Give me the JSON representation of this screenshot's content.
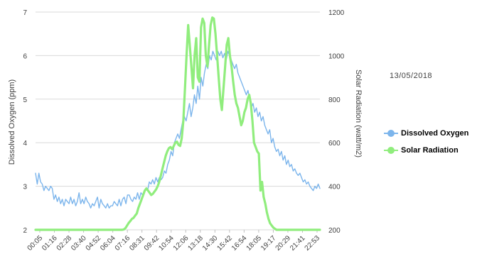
{
  "date_label": "13/05/2018",
  "legend": [
    {
      "name": "Dissolved Oxygen",
      "color": "#7cb5ec"
    },
    {
      "name": "Solar Radiation",
      "color": "#90ed7d"
    }
  ],
  "chart_data": {
    "type": "line",
    "xlabel": "",
    "x_tick_labels": [
      "00:05",
      "01:16",
      "02:28",
      "03:40",
      "04:52",
      "06:04",
      "07:16",
      "08:31",
      "09:42",
      "10:54",
      "12:06",
      "13:18",
      "14:30",
      "15:42",
      "16:54",
      "18:05",
      "19:17",
      "20:29",
      "21:41",
      "22:53"
    ],
    "y_left": {
      "label": "Dissolved Oxygen (ppm)",
      "min": 2,
      "max": 7,
      "ticks": [
        2,
        3,
        4,
        5,
        6,
        7
      ]
    },
    "y_right": {
      "label": "Solar Radiation (watt/m2)",
      "min": 200,
      "max": 1200,
      "ticks": [
        200,
        400,
        600,
        800,
        1000,
        1200
      ]
    },
    "grid": true,
    "series": [
      {
        "name": "Dissolved Oxygen",
        "axis": "left",
        "color": "#7cb5ec",
        "values": [
          3.3,
          3.05,
          3.3,
          3.1,
          3.05,
          2.9,
          3.0,
          2.95,
          2.9,
          3.0,
          2.95,
          2.7,
          2.8,
          2.65,
          2.75,
          2.6,
          2.7,
          2.55,
          2.7,
          2.65,
          2.6,
          2.75,
          2.6,
          2.7,
          2.55,
          2.65,
          2.85,
          2.6,
          2.7,
          2.6,
          2.75,
          2.65,
          2.6,
          2.5,
          2.6,
          2.55,
          2.65,
          2.75,
          2.5,
          2.7,
          2.6,
          2.55,
          2.5,
          2.6,
          2.5,
          2.55,
          2.55,
          2.65,
          2.6,
          2.55,
          2.7,
          2.55,
          2.7,
          2.75,
          2.6,
          2.8,
          2.8,
          2.7,
          2.65,
          2.75,
          2.7,
          2.85,
          2.7,
          2.85,
          2.8,
          2.9,
          2.95,
          2.9,
          3.1,
          3.05,
          3.15,
          3.05,
          3.2,
          3.1,
          3.2,
          3.15,
          3.2,
          3.35,
          3.3,
          3.5,
          3.6,
          3.8,
          3.7,
          4.0,
          4.1,
          4.2,
          4.1,
          4.3,
          4.5,
          4.6,
          4.5,
          4.7,
          4.9,
          4.6,
          4.8,
          5.1,
          4.9,
          5.3,
          5.0,
          5.5,
          5.3,
          5.6,
          5.8,
          5.7,
          6.0,
          5.9,
          6.1,
          6.0,
          5.9,
          6.1,
          6.0,
          6.1,
          5.95,
          6.05,
          5.9,
          6.1,
          6.0,
          5.9,
          5.8,
          5.7,
          5.8,
          5.6,
          5.5,
          5.4,
          5.3,
          5.2,
          5.1,
          5.2,
          5.0,
          4.8,
          4.9,
          4.7,
          4.8,
          4.6,
          4.7,
          4.5,
          4.6,
          4.4,
          4.3,
          4.2,
          4.3,
          4.0,
          4.1,
          3.9,
          3.8,
          3.85,
          3.7,
          3.8,
          3.6,
          3.7,
          3.5,
          3.6,
          3.45,
          3.5,
          3.35,
          3.4,
          3.3,
          3.25,
          3.3,
          3.2,
          3.1,
          3.15,
          3.05,
          3.1,
          3.0,
          2.95,
          2.9,
          3.0,
          2.95,
          3.05,
          2.95
        ]
      },
      {
        "name": "Solar Radiation",
        "axis": "right",
        "color": "#90ed7d",
        "values": [
          200,
          200,
          200,
          200,
          200,
          200,
          200,
          200,
          200,
          200,
          200,
          200,
          200,
          200,
          200,
          200,
          200,
          200,
          200,
          200,
          200,
          200,
          200,
          200,
          200,
          200,
          200,
          200,
          200,
          200,
          200,
          200,
          200,
          200,
          200,
          200,
          200,
          200,
          200,
          200,
          200,
          200,
          200,
          200,
          200,
          200,
          200,
          200,
          200,
          200,
          200,
          200,
          200,
          200,
          200,
          202,
          208,
          220,
          232,
          240,
          250,
          255,
          265,
          275,
          300,
          320,
          340,
          360,
          380,
          390,
          380,
          370,
          360,
          365,
          375,
          385,
          400,
          420,
          450,
          480,
          510,
          540,
          560,
          575,
          580,
          570,
          585,
          600,
          605,
          590,
          585,
          620,
          700,
          850,
          1000,
          1140,
          1050,
          950,
          850,
          1000,
          1080,
          900,
          880,
          1130,
          1170,
          1150,
          1000,
          950,
          1050,
          1140,
          1175,
          1170,
          1100,
          1000,
          900,
          800,
          750,
          850,
          950,
          1050,
          1080,
          1000,
          950,
          880,
          820,
          780,
          760,
          720,
          680,
          700,
          740,
          760,
          800,
          820,
          780,
          700,
          600,
          580,
          560,
          550,
          380,
          420,
          350,
          320,
          280,
          250,
          230,
          220,
          210,
          205,
          200,
          200,
          200,
          200,
          200,
          200,
          200,
          200,
          200,
          200,
          200,
          200,
          200,
          200,
          200,
          200,
          200,
          200,
          200,
          200,
          200,
          200,
          200,
          200,
          200,
          200,
          200,
          200
        ]
      }
    ]
  }
}
